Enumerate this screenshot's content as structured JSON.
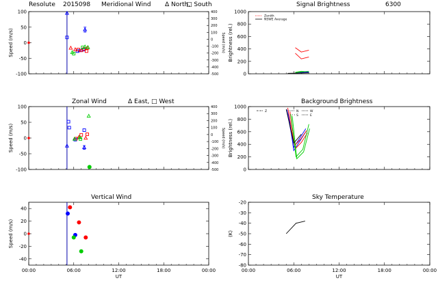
{
  "header": {
    "site": "Resolute",
    "date_code": "2015098"
  },
  "colors": {
    "north": "#0000ff",
    "south": "#ff0000",
    "east": "#00cc00",
    "west": "#0000ff",
    "zenith": "#ff0000",
    "axis": "#000000",
    "vline": "#0000aa"
  },
  "chart_data": [
    {
      "id": "meridional",
      "type": "scatter",
      "title": "Meridional Wind",
      "legend": [
        "Δ North,",
        "□ South"
      ],
      "ylabel": "Speed (m/s)",
      "y2label": "Speed (m/s)",
      "ylim": [
        -100,
        100
      ],
      "y2lim": [
        -500,
        400
      ],
      "yticks": [
        -100,
        -50,
        0,
        50,
        100
      ],
      "y2ticks": [
        -500,
        -400,
        -300,
        -200,
        -100,
        0,
        100,
        200,
        300,
        400
      ],
      "xticks": [
        "00:00",
        "06:00",
        "12:00",
        "18:00",
        "00:00"
      ],
      "xlim": [
        0,
        24
      ],
      "vline_x": 5.1,
      "series": [
        {
          "color": "#0000ff",
          "marker": "triangle",
          "points": [
            [
              5.1,
              95
            ],
            [
              6.8,
              -25
            ],
            [
              7.5,
              42
            ]
          ],
          "errors": [
            0,
            0,
            8
          ]
        },
        {
          "color": "#0000ff",
          "marker": "square",
          "points": [
            [
              5.1,
              17
            ],
            [
              6.5,
              -27
            ],
            [
              7.3,
              -22
            ]
          ]
        },
        {
          "color": "#ff0000",
          "marker": "square",
          "points": [
            [
              6.6,
              -22
            ],
            [
              7.4,
              -20
            ],
            [
              7.7,
              -27
            ]
          ]
        },
        {
          "color": "#ff0000",
          "marker": "triangle",
          "points": [
            [
              5.6,
              -17
            ],
            [
              6.2,
              -22
            ],
            [
              7.0,
              -25
            ],
            [
              7.8,
              -17
            ]
          ]
        },
        {
          "color": "#00cc00",
          "marker": "square",
          "points": [
            [
              6.0,
              -35
            ],
            [
              7.2,
              -15
            ]
          ]
        },
        {
          "color": "#00cc00",
          "marker": "triangle",
          "points": [
            [
              5.8,
              -31
            ],
            [
              7.5,
              -13
            ],
            [
              7.9,
              -15
            ]
          ]
        }
      ],
      "zero_marker_color": "#ff0000"
    },
    {
      "id": "zonal",
      "type": "scatter",
      "title": "Zonal Wind",
      "legend": [
        "Δ East,",
        "□ West"
      ],
      "ylabel": "Speed (m/s)",
      "y2label": "Speed (m/s)",
      "ylim": [
        -100,
        100
      ],
      "y2lim": [
        -500,
        400
      ],
      "yticks": [
        -100,
        -50,
        0,
        50,
        100
      ],
      "y2ticks": [
        -500,
        -400,
        -300,
        -200,
        -100,
        0,
        100,
        200,
        300,
        400
      ],
      "xticks": [
        "00:00",
        "06:00",
        "12:00",
        "18:00",
        "00:00"
      ],
      "xlim": [
        0,
        24
      ],
      "vline_x": 5.1,
      "series": [
        {
          "color": "#0000ff",
          "marker": "triangle",
          "points": [
            [
              5.1,
              -25
            ],
            [
              7.4,
              -30
            ]
          ],
          "errors": [
            0,
            6
          ]
        },
        {
          "color": "#0000ff",
          "marker": "square",
          "points": [
            [
              5.3,
              52
            ],
            [
              5.4,
              33
            ],
            [
              6.2,
              -5
            ],
            [
              7.4,
              25
            ]
          ]
        },
        {
          "color": "#ff0000",
          "marker": "square",
          "points": [
            [
              6.3,
              -2
            ],
            [
              7.0,
              10
            ],
            [
              7.8,
              12
            ]
          ]
        },
        {
          "color": "#ff0000",
          "marker": "triangle",
          "points": [
            [
              6.7,
              3
            ],
            [
              7.6,
              0
            ]
          ]
        },
        {
          "color": "#00cc00",
          "marker": "triangle",
          "points": [
            [
              6.1,
              -3
            ],
            [
              6.8,
              2
            ],
            [
              8.0,
              70
            ]
          ]
        },
        {
          "color": "#00cc00",
          "marker": "square",
          "points": [
            [
              6.9,
              -3
            ]
          ]
        },
        {
          "color": "#00cc00",
          "marker": "dot",
          "points": [
            [
              8.1,
              -92
            ]
          ]
        }
      ],
      "zero_marker_color": "#ff0000"
    },
    {
      "id": "vertical",
      "type": "scatter",
      "title": "Vertical Wind",
      "ylabel": "Speed (m/s)",
      "ylim": [
        -50,
        50
      ],
      "yticks": [
        -40,
        -20,
        0,
        20,
        40
      ],
      "xticks": [
        "00:00",
        "06:00",
        "12:00",
        "18:00",
        "00:00"
      ],
      "xlabel": "UT",
      "xlim": [
        0,
        24
      ],
      "vline_x": 5.1,
      "series": [
        {
          "color": "#ff0000",
          "marker": "dot",
          "points": [
            [
              5.5,
              42
            ],
            [
              6.7,
              18
            ],
            [
              7.6,
              -6
            ]
          ]
        },
        {
          "color": "#0000ff",
          "marker": "dot",
          "points": [
            [
              5.2,
              32
            ],
            [
              6.2,
              -2
            ]
          ]
        },
        {
          "color": "#00cc00",
          "marker": "dot",
          "points": [
            [
              6.0,
              -6
            ],
            [
              7.0,
              -28
            ]
          ]
        }
      ],
      "zero_marker_color": "#ff0000"
    },
    {
      "id": "signal",
      "type": "line",
      "title": "Signal Brightness",
      "wavelength": "6300",
      "ylabel": "Brightness (rel.)",
      "ylim": [
        0,
        1000
      ],
      "yticks": [
        0,
        200,
        400,
        600,
        800,
        1000
      ],
      "xticks": [
        "00:00",
        "06:00",
        "12:00",
        "18:00",
        "00:00"
      ],
      "xlim": [
        0,
        24
      ],
      "legend": [
        "Zenith",
        "NSWE Average"
      ],
      "series": [
        {
          "color": "#ff0000",
          "style": "solid",
          "x": [
            6.2,
            7.0,
            8.0
          ],
          "y": [
            420,
            350,
            380
          ]
        },
        {
          "color": "#ff0000",
          "style": "solid",
          "x": [
            6.2,
            7.0,
            8.0
          ],
          "y": [
            330,
            240,
            270
          ]
        },
        {
          "color": "#00cc00",
          "style": "solid",
          "x": [
            6.2,
            7.0,
            8.0
          ],
          "y": [
            15,
            30,
            40
          ]
        },
        {
          "color": "#00cc00",
          "style": "solid",
          "x": [
            6.2,
            7.0,
            8.0
          ],
          "y": [
            25,
            40,
            30
          ]
        },
        {
          "color": "#0000ff",
          "style": "solid",
          "x": [
            6.2,
            7.0,
            8.0
          ],
          "y": [
            10,
            20,
            30
          ]
        },
        {
          "color": "#000000",
          "style": "solid",
          "x": [
            5.2,
            8.0
          ],
          "y": [
            8,
            15
          ]
        }
      ]
    },
    {
      "id": "background",
      "type": "line",
      "title": "Background Brightness",
      "ylabel": "Brightness (rel.)",
      "ylim": [
        0,
        1000
      ],
      "yticks": [
        0,
        200,
        400,
        600,
        800,
        1000
      ],
      "xticks": [
        "00:00",
        "06:00",
        "12:00",
        "18:00",
        "00:00"
      ],
      "xlim": [
        0,
        24
      ],
      "legend": [
        "Z",
        "N",
        "S",
        "W",
        "E"
      ],
      "series": [
        {
          "color": "#0000ff",
          "x": [
            5.1,
            6.0,
            6.8,
            7.6
          ],
          "y": [
            950,
            350,
            500,
            650
          ]
        },
        {
          "color": "#0000ff",
          "x": [
            5.3,
            6.0,
            6.8,
            7.6
          ],
          "y": [
            900,
            300,
            450,
            600
          ]
        },
        {
          "color": "#ff0000",
          "x": [
            5.2,
            6.1,
            6.9,
            7.7
          ],
          "y": [
            980,
            380,
            480,
            620
          ]
        },
        {
          "color": "#ff0000",
          "x": [
            5.5,
            6.2,
            7.0,
            7.8
          ],
          "y": [
            920,
            330,
            430,
            580
          ]
        },
        {
          "color": "#00cc00",
          "x": [
            5.6,
            6.3,
            7.2,
            8.0
          ],
          "y": [
            880,
            200,
            320,
            720
          ]
        },
        {
          "color": "#00cc00",
          "x": [
            5.8,
            6.4,
            7.3,
            8.1
          ],
          "y": [
            850,
            170,
            280,
            650
          ]
        },
        {
          "color": "#000000",
          "x": [
            5.0,
            6.0,
            7.0
          ],
          "y": [
            960,
            420,
            560
          ]
        }
      ]
    },
    {
      "id": "skytemp",
      "type": "line",
      "title": "Sky Temperature",
      "ylabel": "(K)",
      "ylim": [
        -80,
        -20
      ],
      "yticks": [
        -80,
        -70,
        -60,
        -50,
        -40,
        -30,
        -20
      ],
      "xticks": [
        "00:00",
        "06:00",
        "12:00",
        "18:00",
        "00:00"
      ],
      "xlabel": "UT",
      "xlim": [
        0,
        24
      ],
      "series": [
        {
          "color": "#000000",
          "x": [
            5.0,
            6.3,
            7.5
          ],
          "y": [
            -50,
            -40,
            -38
          ]
        }
      ]
    }
  ]
}
